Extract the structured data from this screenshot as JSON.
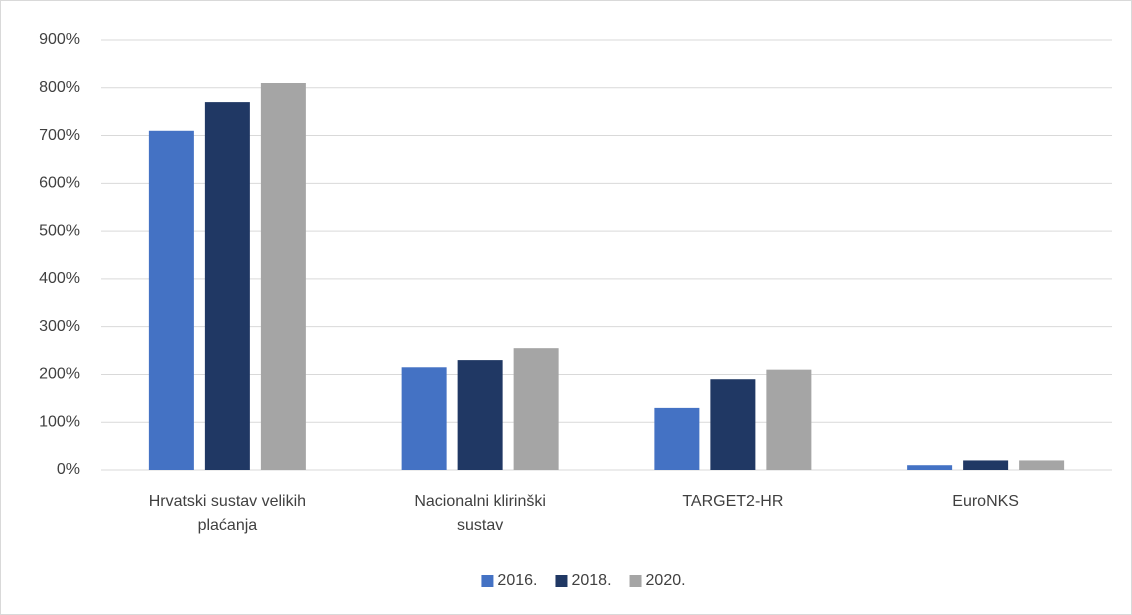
{
  "chart_data": {
    "type": "bar",
    "categories": [
      "Hrvatski sustav velikih plaćanja",
      "Nacionalni klirinški sustav",
      "TARGET2-HR",
      "EuroNKS"
    ],
    "series": [
      {
        "name": "2016.",
        "color": "#4472c4",
        "values": [
          710,
          215,
          130,
          10
        ]
      },
      {
        "name": "2018.",
        "color": "#203864",
        "values": [
          770,
          230,
          190,
          20
        ]
      },
      {
        "name": "2020.",
        "color": "#a5a5a5",
        "values": [
          810,
          255,
          210,
          20
        ]
      }
    ],
    "ylim": [
      0,
      900
    ],
    "yticks": [
      {
        "value": 0,
        "label": "0%"
      },
      {
        "value": 100,
        "label": "100%"
      },
      {
        "value": 200,
        "label": "200%"
      },
      {
        "value": 300,
        "label": "300%"
      },
      {
        "value": 400,
        "label": "400%"
      },
      {
        "value": 500,
        "label": "500%"
      },
      {
        "value": 600,
        "label": "600%"
      },
      {
        "value": 700,
        "label": "700%"
      },
      {
        "value": 800,
        "label": "800%"
      },
      {
        "value": 900,
        "label": "900%"
      }
    ],
    "grid": true,
    "legend": "bottom"
  }
}
